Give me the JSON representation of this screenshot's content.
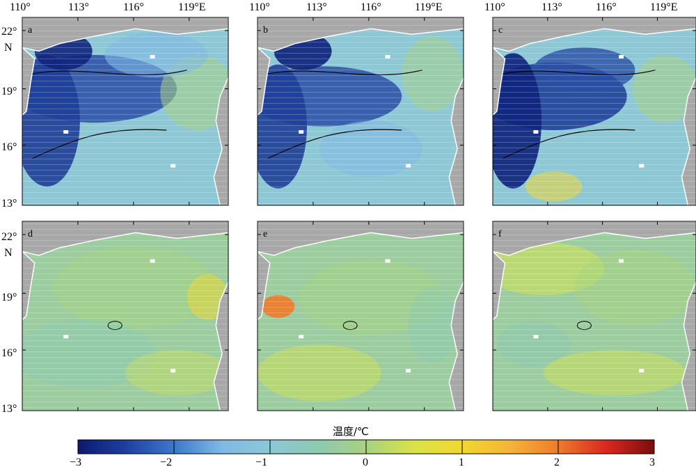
{
  "longitude_ticks": [
    "110°",
    "113°",
    "116°",
    "119°E"
  ],
  "latitude_ticks": [
    "22°",
    "19°",
    "16°",
    "13°"
  ],
  "latitude_hemisphere": "N",
  "panels": [
    {
      "label": "a"
    },
    {
      "label": "b"
    },
    {
      "label": "c"
    },
    {
      "label": "d"
    },
    {
      "label": "e"
    },
    {
      "label": "f"
    }
  ],
  "colorbar": {
    "title": "温度/℃",
    "ticks": [
      "−3",
      "−2",
      "−1",
      "0",
      "1",
      "2",
      "3"
    ],
    "range": [
      -3,
      3
    ],
    "colormap": "parula-jet-like",
    "stops": [
      "#0b1a6e",
      "#1f3fa0",
      "#3d78c8",
      "#7fb9e6",
      "#8cc8d6",
      "#8ec9b0",
      "#a8d27f",
      "#d8e34a",
      "#f2d72f",
      "#f4b43a",
      "#ee7b2c",
      "#d9281f",
      "#7a0d0d"
    ]
  },
  "map": {
    "land_color": "#a8a8a8",
    "ocean_neutral": "#8cc8c6",
    "contour_color": "#000000"
  }
}
